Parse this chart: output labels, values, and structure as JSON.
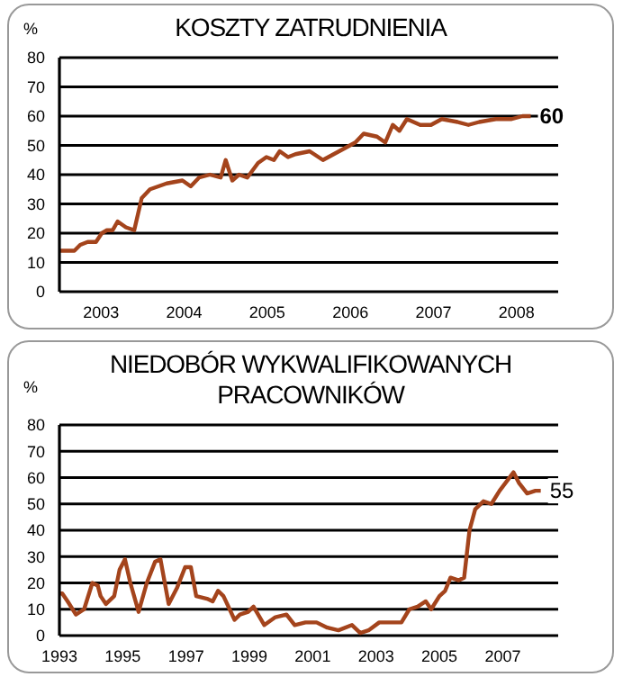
{
  "chart_data": [
    {
      "type": "line",
      "title": "KOSZTY ZATRUDNIENIA",
      "ylabel": "%",
      "x": [
        2003.0,
        2003.18,
        2003.25,
        2003.34,
        2003.44,
        2003.51,
        2003.57,
        2003.64,
        2003.7,
        2003.8,
        2003.9,
        2003.99,
        2004.09,
        2004.29,
        2004.48,
        2004.58,
        2004.68,
        2004.81,
        2004.94,
        2005.0,
        2005.08,
        2005.16,
        2005.26,
        2005.39,
        2005.49,
        2005.58,
        2005.65,
        2005.75,
        2005.84,
        2006.01,
        2006.17,
        2006.3,
        2006.43,
        2006.56,
        2006.66,
        2006.82,
        2006.92,
        2007.01,
        2007.09,
        2007.18,
        2007.34,
        2007.47,
        2007.6,
        2007.79,
        2007.92,
        2008.05,
        2008.25,
        2008.44,
        2008.57,
        2008.67
      ],
      "series": [
        {
          "color": "#a4441c",
          "values": [
            14,
            14,
            16,
            17,
            17,
            20,
            21,
            21,
            24,
            22,
            21,
            32,
            35,
            37,
            38,
            36,
            39,
            40,
            39,
            45,
            38,
            40,
            39,
            44,
            46,
            45,
            48,
            46,
            47,
            48,
            45,
            47,
            49,
            51,
            54,
            53,
            51,
            57,
            55,
            59,
            57,
            57,
            59,
            58,
            57,
            58,
            59,
            59,
            60,
            60
          ]
        }
      ],
      "xlim": [
        2003,
        2009
      ],
      "xticks": [
        {
          "value": 2003.5,
          "label": "2003"
        },
        {
          "value": 2004.5,
          "label": "2004"
        },
        {
          "value": 2005.5,
          "label": "2005"
        },
        {
          "value": 2006.5,
          "label": "2006"
        },
        {
          "value": 2007.5,
          "label": "2007"
        },
        {
          "value": 2008.5,
          "label": "2008"
        }
      ],
      "ylim": [
        0,
        80
      ],
      "yticks": [
        0,
        10,
        20,
        30,
        40,
        50,
        60,
        70,
        80
      ],
      "grid": "y",
      "legend": false,
      "line_style": "solid",
      "annotations": [
        {
          "text": "60",
          "x": 2008.67,
          "y": 60
        }
      ]
    },
    {
      "type": "line",
      "title": "NIEDOBÓR WYKWALIFIKOWANYCH PRACOWNIKÓW",
      "ylabel": "%",
      "x": [
        1993.0,
        1993.09,
        1993.26,
        1993.52,
        1993.78,
        1994.04,
        1994.21,
        1994.3,
        1994.47,
        1994.73,
        1994.9,
        1995.07,
        1995.24,
        1995.5,
        1995.76,
        1996.02,
        1996.19,
        1996.45,
        1996.71,
        1996.97,
        1997.15,
        1997.32,
        1997.66,
        1997.84,
        1998.01,
        1998.18,
        1998.53,
        1998.7,
        1998.96,
        1999.13,
        1999.47,
        1999.82,
        2000.17,
        2000.43,
        2000.77,
        2001.12,
        2001.46,
        2001.81,
        2002.24,
        2002.5,
        2002.76,
        2003.1,
        2003.45,
        2003.8,
        2004.05,
        2004.31,
        2004.57,
        2004.74,
        2005.0,
        2005.18,
        2005.35,
        2005.61,
        2005.78,
        2005.95,
        2006.13,
        2006.39,
        2006.64,
        2006.9,
        2007.34,
        2007.51,
        2007.77,
        2008.03,
        2008.2
      ],
      "series": [
        {
          "color": "#a4441c",
          "values": [
            16,
            16,
            13,
            8,
            10,
            20,
            19,
            15,
            12,
            15,
            25,
            29,
            20,
            9,
            20,
            28,
            29,
            12,
            18,
            26,
            26,
            15,
            14,
            13,
            17,
            15,
            6,
            8,
            9,
            11,
            4,
            7,
            8,
            4,
            5,
            5,
            3,
            2,
            4,
            1,
            2,
            5,
            5,
            5,
            10,
            11,
            13,
            10,
            15,
            17,
            22,
            21,
            22,
            40,
            48,
            51,
            50,
            55,
            62,
            58,
            54,
            55,
            55
          ]
        }
      ],
      "xlim": [
        1993,
        2008.75
      ],
      "xticks": [
        1993,
        1995,
        1997,
        1999,
        2001,
        2003,
        2005,
        2007
      ],
      "ylim": [
        0,
        80
      ],
      "yticks": [
        0,
        10,
        20,
        30,
        40,
        50,
        60,
        70,
        80
      ],
      "grid": "y",
      "legend": false,
      "line_style": "solid",
      "annotations": [
        {
          "text": "55",
          "x": 2008.2,
          "y": 55
        }
      ]
    }
  ]
}
